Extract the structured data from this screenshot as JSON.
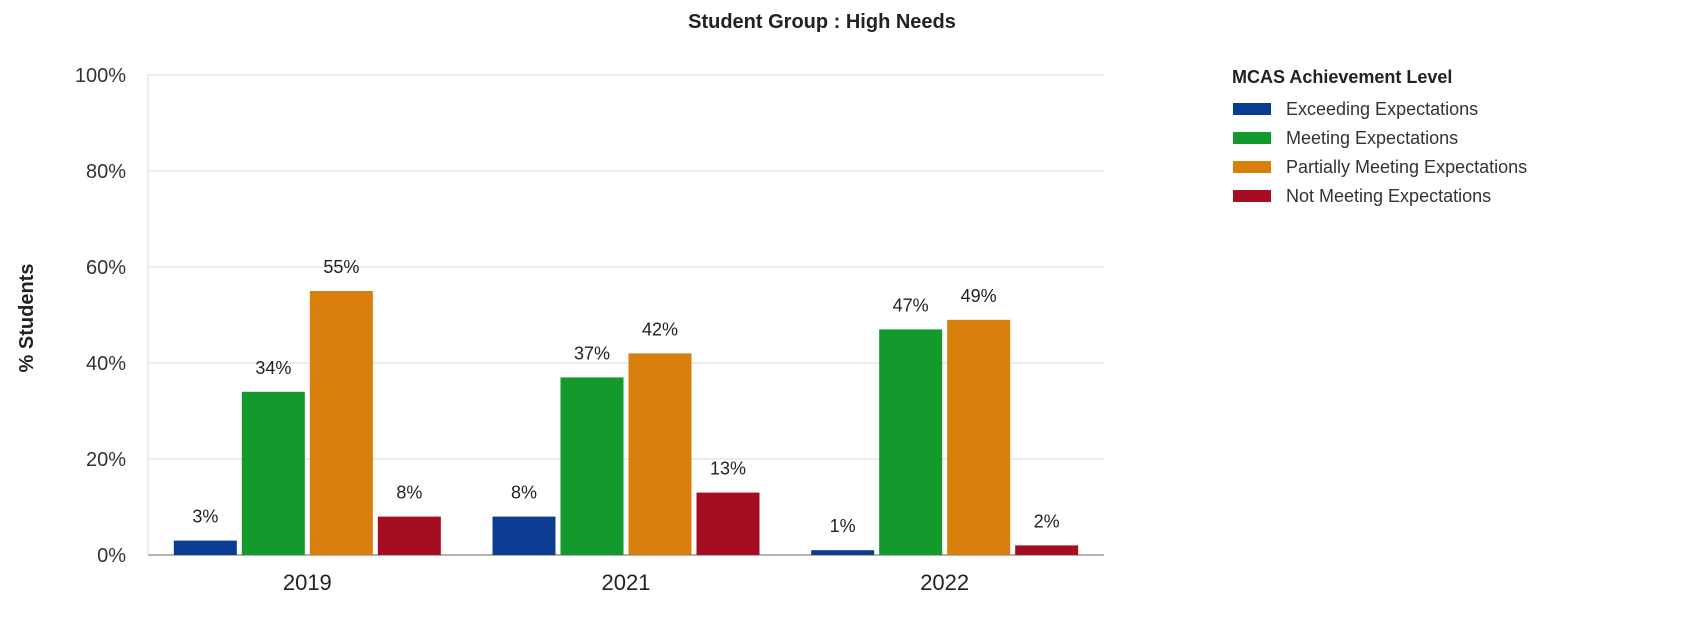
{
  "chart_data": {
    "type": "bar",
    "title": "Student Group : High Needs",
    "xlabel": "",
    "ylabel": "% Students",
    "ylim": [
      0,
      100
    ],
    "yticks": [
      "0%",
      "20%",
      "40%",
      "60%",
      "80%",
      "100%"
    ],
    "grid": true,
    "legend": {
      "title": "MCAS Achievement Level",
      "placement": "right"
    },
    "categories": [
      "2019",
      "2021",
      "2022"
    ],
    "series": [
      {
        "name": "Exceeding Expectations",
        "color": "#0a3d91",
        "values": [
          3,
          8,
          1
        ],
        "labels": [
          "3%",
          "8%",
          "1%"
        ]
      },
      {
        "name": "Meeting Expectations",
        "color": "#139a2c",
        "values": [
          34,
          37,
          47
        ],
        "labels": [
          "34%",
          "37%",
          "47%"
        ]
      },
      {
        "name": "Partially Meeting Expectations",
        "color": "#d97f0d",
        "values": [
          55,
          42,
          49
        ],
        "labels": [
          "55%",
          "42%",
          "49%"
        ]
      },
      {
        "name": "Not Meeting Expectations",
        "color": "#a50d22",
        "values": [
          8,
          13,
          2
        ],
        "labels": [
          "8%",
          "13%",
          "2%"
        ]
      }
    ]
  }
}
